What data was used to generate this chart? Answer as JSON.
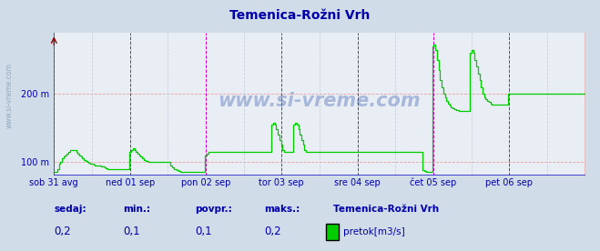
{
  "title": "Temenica-Rožni Vrh",
  "title_color": "#0000aa",
  "bg_color": "#d0dce8",
  "plot_bg_color": "#e8eef4",
  "grid_color_h": "#e8a0a0",
  "grid_color_v": "#c8d0dc",
  "line_color": "#00cc00",
  "axis_color_left": "#4444cc",
  "axis_color_bottom": "#2222cc",
  "tick_color": "#0000aa",
  "ylim": [
    80,
    290
  ],
  "yticks": [
    100,
    200
  ],
  "ytick_labels": [
    "100 m",
    "200 m"
  ],
  "xlim": [
    0,
    336
  ],
  "x_day_labels": [
    "sob 31 avg",
    "ned 01 sep",
    "pon 02 sep",
    "tor 03 sep",
    "sre 04 sep",
    "čet 05 sep",
    "pet 06 sep"
  ],
  "x_day_positions": [
    0,
    48,
    96,
    144,
    192,
    240,
    288
  ],
  "vline_positions_magenta": [
    0,
    48,
    96,
    144,
    192,
    240,
    288,
    336
  ],
  "vline_positions_dark": [
    24,
    72,
    120,
    168,
    216,
    264,
    312
  ],
  "watermark": "www.si-vreme.com",
  "footer_labels": [
    "sedaj:",
    "min.:",
    "povpr.:",
    "maks.:"
  ],
  "footer_values": [
    "0,2",
    "0,1",
    "0,1",
    "0,2"
  ],
  "footer_station": "Temenica-Rožni Vrh",
  "footer_legend": "pretok[m3/s]",
  "footer_color": "#0000aa",
  "flow_data": [
    85,
    85,
    90,
    97,
    100,
    105,
    108,
    110,
    112,
    115,
    118,
    118,
    118,
    118,
    115,
    112,
    110,
    108,
    105,
    103,
    102,
    100,
    99,
    98,
    97,
    96,
    95,
    95,
    95,
    95,
    94,
    93,
    92,
    91,
    90,
    90,
    90,
    90,
    90,
    90,
    90,
    90,
    90,
    90,
    90,
    90,
    90,
    90,
    115,
    118,
    120,
    118,
    115,
    112,
    110,
    108,
    105,
    103,
    102,
    101,
    100,
    100,
    100,
    100,
    100,
    100,
    100,
    100,
    100,
    100,
    100,
    100,
    100,
    100,
    95,
    92,
    90,
    90,
    88,
    87,
    86,
    85,
    85,
    85,
    85,
    85,
    85,
    85,
    85,
    85,
    85,
    85,
    85,
    85,
    85,
    85,
    110,
    112,
    115,
    115,
    115,
    115,
    115,
    115,
    115,
    115,
    115,
    115,
    115,
    115,
    115,
    115,
    115,
    115,
    115,
    115,
    115,
    115,
    115,
    115,
    115,
    115,
    115,
    115,
    115,
    115,
    115,
    115,
    115,
    115,
    115,
    115,
    115,
    115,
    115,
    115,
    115,
    115,
    155,
    158,
    155,
    148,
    140,
    132,
    125,
    118,
    115,
    115,
    115,
    115,
    115,
    115,
    155,
    158,
    155,
    148,
    140,
    132,
    125,
    118,
    115,
    115,
    115,
    115,
    115,
    115,
    115,
    115,
    115,
    115,
    115,
    115,
    115,
    115,
    115,
    115,
    115,
    115,
    115,
    115,
    115,
    115,
    115,
    115,
    115,
    115,
    115,
    115,
    115,
    115,
    115,
    115,
    115,
    115,
    115,
    115,
    115,
    115,
    115,
    115,
    115,
    115,
    115,
    115,
    115,
    115,
    115,
    115,
    115,
    115,
    115,
    115,
    115,
    115,
    115,
    115,
    115,
    115,
    115,
    115,
    115,
    115,
    115,
    115,
    115,
    115,
    115,
    115,
    115,
    115,
    115,
    115,
    115,
    115,
    88,
    87,
    86,
    85,
    85,
    85,
    270,
    272,
    265,
    250,
    235,
    220,
    210,
    200,
    195,
    190,
    186,
    183,
    181,
    179,
    178,
    177,
    176,
    175,
    175,
    175,
    175,
    175,
    175,
    175,
    260,
    265,
    260,
    250,
    240,
    230,
    220,
    210,
    200,
    195,
    192,
    190,
    188,
    186,
    185,
    185,
    185,
    185,
    185,
    185,
    185,
    185,
    185,
    185,
    200,
    200,
    200,
    200,
    200,
    200,
    200,
    200,
    200,
    200,
    200,
    200,
    200,
    200,
    200,
    200,
    200,
    200,
    200,
    200,
    200,
    200,
    200,
    200,
    200,
    200,
    200,
    200,
    200,
    200,
    200,
    200,
    200,
    200,
    200,
    200,
    200,
    200,
    200,
    200,
    200,
    200,
    200,
    200,
    200,
    200,
    200,
    200,
    200,
    200
  ]
}
